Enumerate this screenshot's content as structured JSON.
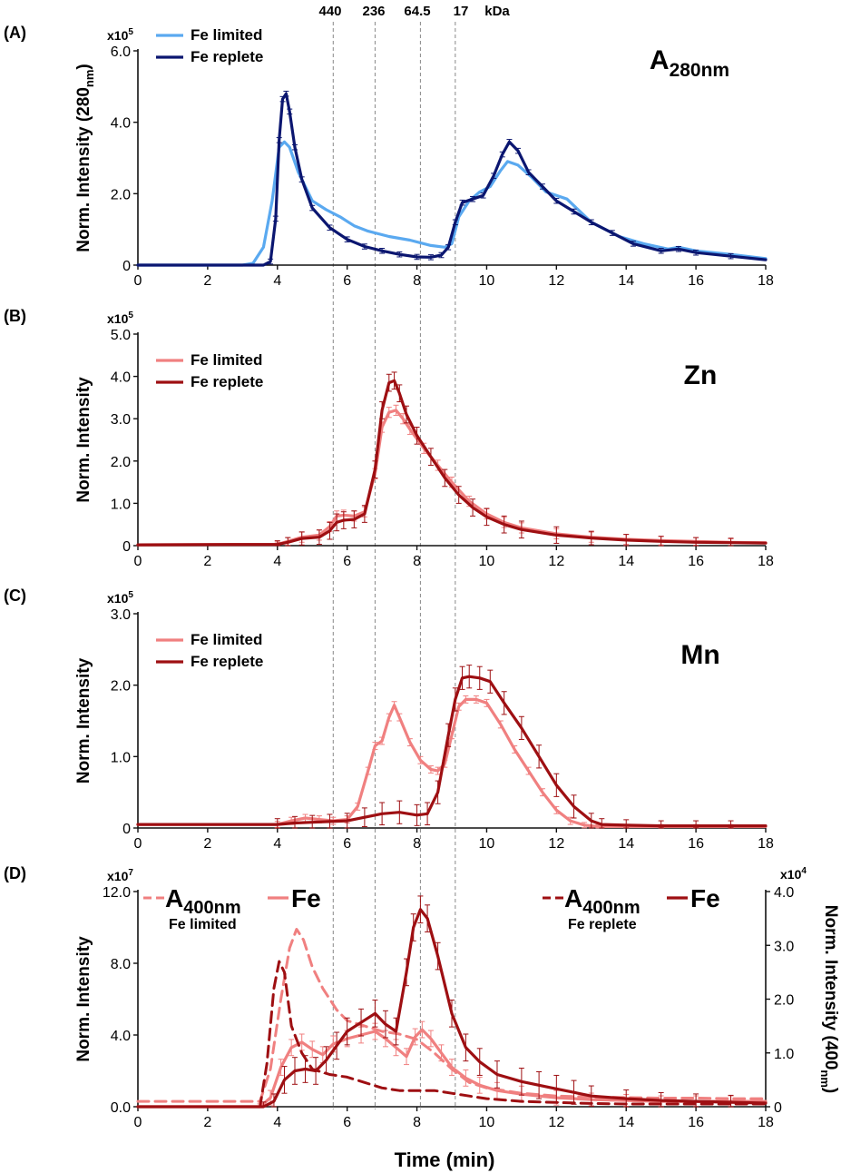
{
  "figure": {
    "xlabel": "Time (min)",
    "mw_markers": {
      "labels": [
        "440",
        "236",
        "64.5",
        "17"
      ],
      "unit": "kDa",
      "times": [
        5.6,
        6.8,
        8.1,
        9.1
      ]
    },
    "colors": {
      "light_blue": "#5aa9f0",
      "dark_navy": "#0b1670",
      "pink": "#f08080",
      "dark_red": "#9e0f12",
      "grid_dash": "#888888"
    }
  },
  "chart_data": [
    {
      "panel": "(A)",
      "type": "line",
      "annotation_main": "A",
      "annotation_sub": "280nm",
      "ylabel": "Norm. Intensity (280",
      "ylabel_sub": "nm",
      "ylabel_end": ")",
      "scale": "x10",
      "scale_exp": "5",
      "xlim": [
        0,
        18
      ],
      "ylim": [
        0,
        6
      ],
      "xticks": [
        "0",
        "2",
        "4",
        "6",
        "8",
        "10",
        "12",
        "14",
        "16",
        "18"
      ],
      "yticks": [
        {
          "v": 0,
          "label": "0"
        },
        {
          "v": 2,
          "label": "2.0"
        },
        {
          "v": 4,
          "label": "4.0"
        },
        {
          "v": 6,
          "label": "6.0"
        }
      ],
      "series": [
        {
          "name": "Fe limited",
          "color": "#5aa9f0",
          "dash": false,
          "err": 0,
          "x": [
            0,
            3,
            3.3,
            3.6,
            3.85,
            4.05,
            4.2,
            4.35,
            4.6,
            5,
            5.4,
            5.8,
            6.2,
            6.6,
            7.2,
            7.8,
            8.4,
            8.8,
            9.0,
            9.2,
            9.5,
            9.8,
            10.1,
            10.4,
            10.6,
            10.9,
            11.3,
            11.7,
            12.3,
            13,
            13.8,
            14.5,
            15.2,
            15.5,
            16,
            17,
            18
          ],
          "y": [
            0,
            0,
            0.05,
            0.5,
            1.8,
            3.3,
            3.45,
            3.3,
            2.6,
            1.8,
            1.55,
            1.35,
            1.1,
            0.95,
            0.8,
            0.7,
            0.55,
            0.5,
            0.6,
            1.35,
            1.8,
            2.05,
            2.2,
            2.65,
            2.9,
            2.8,
            2.45,
            2.05,
            1.85,
            1.2,
            0.8,
            0.6,
            0.45,
            0.5,
            0.4,
            0.3,
            0.18
          ]
        },
        {
          "name": "Fe replete",
          "color": "#0b1670",
          "dash": false,
          "err": 0.07,
          "x": [
            0,
            3.6,
            3.8,
            3.95,
            4.05,
            4.15,
            4.25,
            4.35,
            4.5,
            4.7,
            5,
            5.5,
            6,
            6.5,
            7,
            7.5,
            8,
            8.4,
            8.7,
            8.9,
            9.1,
            9.3,
            9.6,
            9.9,
            10.2,
            10.45,
            10.65,
            10.9,
            11.2,
            11.6,
            12,
            12.5,
            13,
            13.6,
            14.2,
            15,
            15.5,
            16,
            17,
            18
          ],
          "y": [
            0,
            0,
            0.1,
            1.3,
            3.5,
            4.65,
            4.8,
            4.3,
            3.3,
            2.4,
            1.6,
            1.05,
            0.72,
            0.52,
            0.4,
            0.3,
            0.23,
            0.22,
            0.28,
            0.5,
            1.2,
            1.75,
            1.85,
            1.95,
            2.5,
            3.1,
            3.45,
            3.2,
            2.6,
            2.2,
            1.8,
            1.5,
            1.2,
            0.9,
            0.6,
            0.4,
            0.45,
            0.35,
            0.25,
            0.15
          ]
        }
      ]
    },
    {
      "panel": "(B)",
      "type": "line",
      "annotation_main": "Zn",
      "annotation_sub": "",
      "ylabel": "Norm. Intensity",
      "ylabel_sub": "",
      "ylabel_end": "",
      "scale": "x10",
      "scale_exp": "5",
      "xlim": [
        0,
        18
      ],
      "ylim": [
        0,
        5
      ],
      "xticks": [
        "0",
        "2",
        "4",
        "6",
        "8",
        "10",
        "12",
        "14",
        "16",
        "18"
      ],
      "yticks": [
        {
          "v": 0,
          "label": "0"
        },
        {
          "v": 1,
          "label": "1.0"
        },
        {
          "v": 2,
          "label": "2.0"
        },
        {
          "v": 3,
          "label": "3.0"
        },
        {
          "v": 4,
          "label": "4.0"
        },
        {
          "v": 5,
          "label": "5.0"
        }
      ],
      "series": [
        {
          "name": "Fe limited",
          "color": "#f08080",
          "dash": false,
          "err": 0.12,
          "x": [
            0,
            4,
            4.3,
            4.7,
            5.2,
            5.5,
            5.7,
            5.9,
            6.2,
            6.5,
            6.8,
            7.0,
            7.2,
            7.4,
            7.6,
            7.8,
            8.2,
            8.6,
            9,
            9.5,
            10,
            10.5,
            11,
            12,
            13,
            14,
            15,
            16,
            17,
            18
          ],
          "y": [
            0.02,
            0.03,
            0.1,
            0.2,
            0.25,
            0.45,
            0.7,
            0.72,
            0.7,
            0.8,
            1.7,
            2.8,
            3.15,
            3.2,
            3.0,
            2.75,
            2.3,
            1.9,
            1.5,
            1.05,
            0.75,
            0.55,
            0.42,
            0.28,
            0.2,
            0.15,
            0.12,
            0.1,
            0.08,
            0.07
          ]
        },
        {
          "name": "Fe replete",
          "color": "#9e0f12",
          "dash": false,
          "err": 0.2,
          "x": [
            0,
            4,
            4.3,
            4.7,
            5.2,
            5.5,
            5.7,
            5.9,
            6.2,
            6.5,
            6.8,
            7.0,
            7.2,
            7.35,
            7.5,
            7.7,
            8.0,
            8.4,
            8.8,
            9.2,
            9.6,
            10,
            10.5,
            11,
            12,
            13,
            14,
            15,
            16,
            17,
            18
          ],
          "y": [
            0.02,
            0.03,
            0.08,
            0.17,
            0.2,
            0.35,
            0.55,
            0.6,
            0.62,
            0.75,
            1.8,
            3.2,
            3.85,
            3.9,
            3.6,
            3.1,
            2.6,
            2.1,
            1.6,
            1.2,
            0.9,
            0.68,
            0.5,
            0.38,
            0.25,
            0.18,
            0.13,
            0.1,
            0.08,
            0.07,
            0.06
          ]
        }
      ]
    },
    {
      "panel": "(C)",
      "type": "line",
      "annotation_main": "Mn",
      "annotation_sub": "",
      "ylabel": "Norm. Intensity",
      "ylabel_sub": "",
      "ylabel_end": "",
      "scale": "x10",
      "scale_exp": "5",
      "xlim": [
        0,
        18
      ],
      "ylim": [
        0,
        3
      ],
      "xticks": [
        "0",
        "2",
        "4",
        "6",
        "8",
        "10",
        "12",
        "14",
        "16",
        "18"
      ],
      "yticks": [
        {
          "v": 0,
          "label": "0"
        },
        {
          "v": 1,
          "label": "1.0"
        },
        {
          "v": 2,
          "label": "2.0"
        },
        {
          "v": 3,
          "label": "3.0"
        }
      ],
      "series": [
        {
          "name": "Fe limited",
          "color": "#f08080",
          "dash": false,
          "err": 0.05,
          "x": [
            0,
            4,
            4.4,
            4.8,
            5.2,
            5.6,
            6,
            6.3,
            6.6,
            6.8,
            7.0,
            7.2,
            7.35,
            7.5,
            7.8,
            8.1,
            8.4,
            8.6,
            8.8,
            9.0,
            9.2,
            9.4,
            9.7,
            10,
            10.4,
            10.8,
            11.2,
            11.6,
            12,
            12.4,
            12.8,
            13.2,
            14,
            15,
            16,
            17,
            18
          ],
          "y": [
            0.05,
            0.05,
            0.1,
            0.14,
            0.12,
            0.1,
            0.12,
            0.3,
            0.8,
            1.15,
            1.22,
            1.55,
            1.72,
            1.55,
            1.2,
            0.95,
            0.82,
            0.8,
            0.9,
            1.3,
            1.7,
            1.8,
            1.8,
            1.75,
            1.45,
            1.1,
            0.8,
            0.5,
            0.25,
            0.1,
            0.04,
            0.02,
            0.02,
            0.02,
            0.02,
            0.02,
            0.02
          ]
        },
        {
          "name": "Fe replete",
          "color": "#9e0f12",
          "dash": false,
          "err": 0.16,
          "x": [
            0,
            4,
            4.5,
            5,
            5.5,
            6,
            6.5,
            7,
            7.5,
            8,
            8.3,
            8.6,
            8.9,
            9.1,
            9.3,
            9.5,
            9.8,
            10.1,
            10.5,
            11,
            11.5,
            12,
            12.5,
            13,
            13.3,
            14,
            15,
            16,
            17,
            18
          ],
          "y": [
            0.05,
            0.05,
            0.07,
            0.08,
            0.09,
            0.1,
            0.15,
            0.2,
            0.22,
            0.18,
            0.2,
            0.5,
            1.3,
            1.8,
            2.1,
            2.12,
            2.1,
            2.05,
            1.75,
            1.4,
            1.0,
            0.6,
            0.3,
            0.1,
            0.05,
            0.04,
            0.03,
            0.03,
            0.03,
            0.03
          ]
        }
      ]
    },
    {
      "panel": "(D)",
      "type": "line",
      "ylabel": "Norm. Intensity",
      "ylabel2": "Norm. Intensity (400",
      "ylabel2_sub": "nm",
      "ylabel2_end": ")",
      "scale": "x10",
      "scale_exp": "7",
      "scale2": "x10",
      "scale2_exp": "4",
      "legend_left": {
        "a_main": "A",
        "a_sub": "400nm",
        "fe": "Fe",
        "caption": "Fe limited"
      },
      "legend_right": {
        "a_main": "A",
        "a_sub": "400nm",
        "fe": "Fe",
        "caption": "Fe replete"
      },
      "xlim": [
        0,
        18
      ],
      "ylim": [
        0,
        12
      ],
      "y2lim": [
        0,
        4
      ],
      "xticks": [
        "0",
        "2",
        "4",
        "6",
        "8",
        "10",
        "12",
        "14",
        "16",
        "18"
      ],
      "yticks": [
        {
          "v": 0,
          "label": "0.0"
        },
        {
          "v": 4,
          "label": "4.0"
        },
        {
          "v": 8,
          "label": "8.0"
        },
        {
          "v": 12,
          "label": "12.0"
        }
      ],
      "y2ticks": [
        {
          "v": 0,
          "label": "0"
        },
        {
          "v": 1,
          "label": "1.0"
        },
        {
          "v": 2,
          "label": "2.0"
        },
        {
          "v": 3,
          "label": "3.0"
        },
        {
          "v": 4,
          "label": "4.0"
        }
      ],
      "series": [
        {
          "name": "A400nm Fe limited",
          "color": "#f08080",
          "dash": true,
          "axis": "right",
          "err": 0,
          "x": [
            0,
            3.5,
            3.8,
            4.1,
            4.35,
            4.55,
            4.75,
            5,
            5.3,
            5.7,
            6,
            6.5,
            7,
            7.5,
            8,
            8.5,
            9,
            9.5,
            10,
            11,
            12,
            13,
            14,
            15,
            16,
            17,
            18
          ],
          "y": [
            0.1,
            0.1,
            0.7,
            2.0,
            2.95,
            3.3,
            3.1,
            2.6,
            2.2,
            1.8,
            1.6,
            1.5,
            1.4,
            1.35,
            1.25,
            1.0,
            0.7,
            0.45,
            0.35,
            0.25,
            0.2,
            0.18,
            0.17,
            0.16,
            0.16,
            0.15,
            0.15
          ]
        },
        {
          "name": "Fe limited",
          "color": "#f08080",
          "dash": false,
          "axis": "left",
          "err": 0.45,
          "x": [
            0,
            3.5,
            3.8,
            4.1,
            4.4,
            4.7,
            5,
            5.3,
            5.6,
            6,
            6.4,
            6.8,
            7.1,
            7.4,
            7.7,
            7.95,
            8.15,
            8.4,
            8.7,
            9,
            9.4,
            9.8,
            10.3,
            11,
            12,
            13,
            14,
            15,
            16,
            17,
            18
          ],
          "y": [
            0,
            0,
            0.5,
            2.2,
            3.3,
            3.6,
            3.2,
            2.9,
            3.5,
            3.8,
            4.0,
            4.2,
            3.8,
            3.3,
            2.8,
            3.9,
            4.3,
            3.8,
            3.0,
            2.2,
            1.6,
            1.2,
            0.9,
            0.7,
            0.5,
            0.4,
            0.35,
            0.3,
            0.3,
            0.3,
            0.3
          ]
        },
        {
          "name": "A400nm Fe replete",
          "color": "#9e0f12",
          "dash": true,
          "axis": "right",
          "err": 0,
          "x": [
            0,
            3.5,
            3.7,
            3.9,
            4.05,
            4.2,
            4.4,
            4.7,
            5,
            5.5,
            6,
            6.5,
            7,
            7.5,
            8,
            8.5,
            9,
            9.5,
            10,
            11,
            12,
            13,
            14,
            15,
            16,
            17,
            18
          ],
          "y": [
            0,
            0,
            0.8,
            2.2,
            2.7,
            2.5,
            1.5,
            1.0,
            0.7,
            0.6,
            0.55,
            0.45,
            0.35,
            0.3,
            0.3,
            0.3,
            0.25,
            0.2,
            0.15,
            0.1,
            0.08,
            0.06,
            0.05,
            0.05,
            0.05,
            0.05,
            0.05
          ]
        },
        {
          "name": "Fe replete",
          "color": "#9e0f12",
          "dash": false,
          "axis": "left",
          "err": 0.75,
          "x": [
            0,
            3.6,
            3.9,
            4.2,
            4.5,
            4.8,
            5.1,
            5.4,
            5.7,
            6,
            6.4,
            6.8,
            7.1,
            7.4,
            7.7,
            7.9,
            8.1,
            8.3,
            8.6,
            9,
            9.4,
            9.8,
            10.3,
            11,
            11.5,
            12,
            12.5,
            13,
            14,
            15,
            16,
            17,
            18
          ],
          "y": [
            0,
            0,
            0.3,
            1.5,
            2.0,
            2.1,
            2.0,
            2.6,
            3.4,
            4.2,
            4.7,
            5.2,
            4.6,
            4.2,
            7.5,
            10.0,
            11.0,
            10.5,
            8.4,
            5.2,
            3.3,
            2.5,
            1.8,
            1.4,
            1.2,
            1.0,
            0.8,
            0.6,
            0.45,
            0.35,
            0.3,
            0.25,
            0.2
          ]
        }
      ]
    }
  ]
}
